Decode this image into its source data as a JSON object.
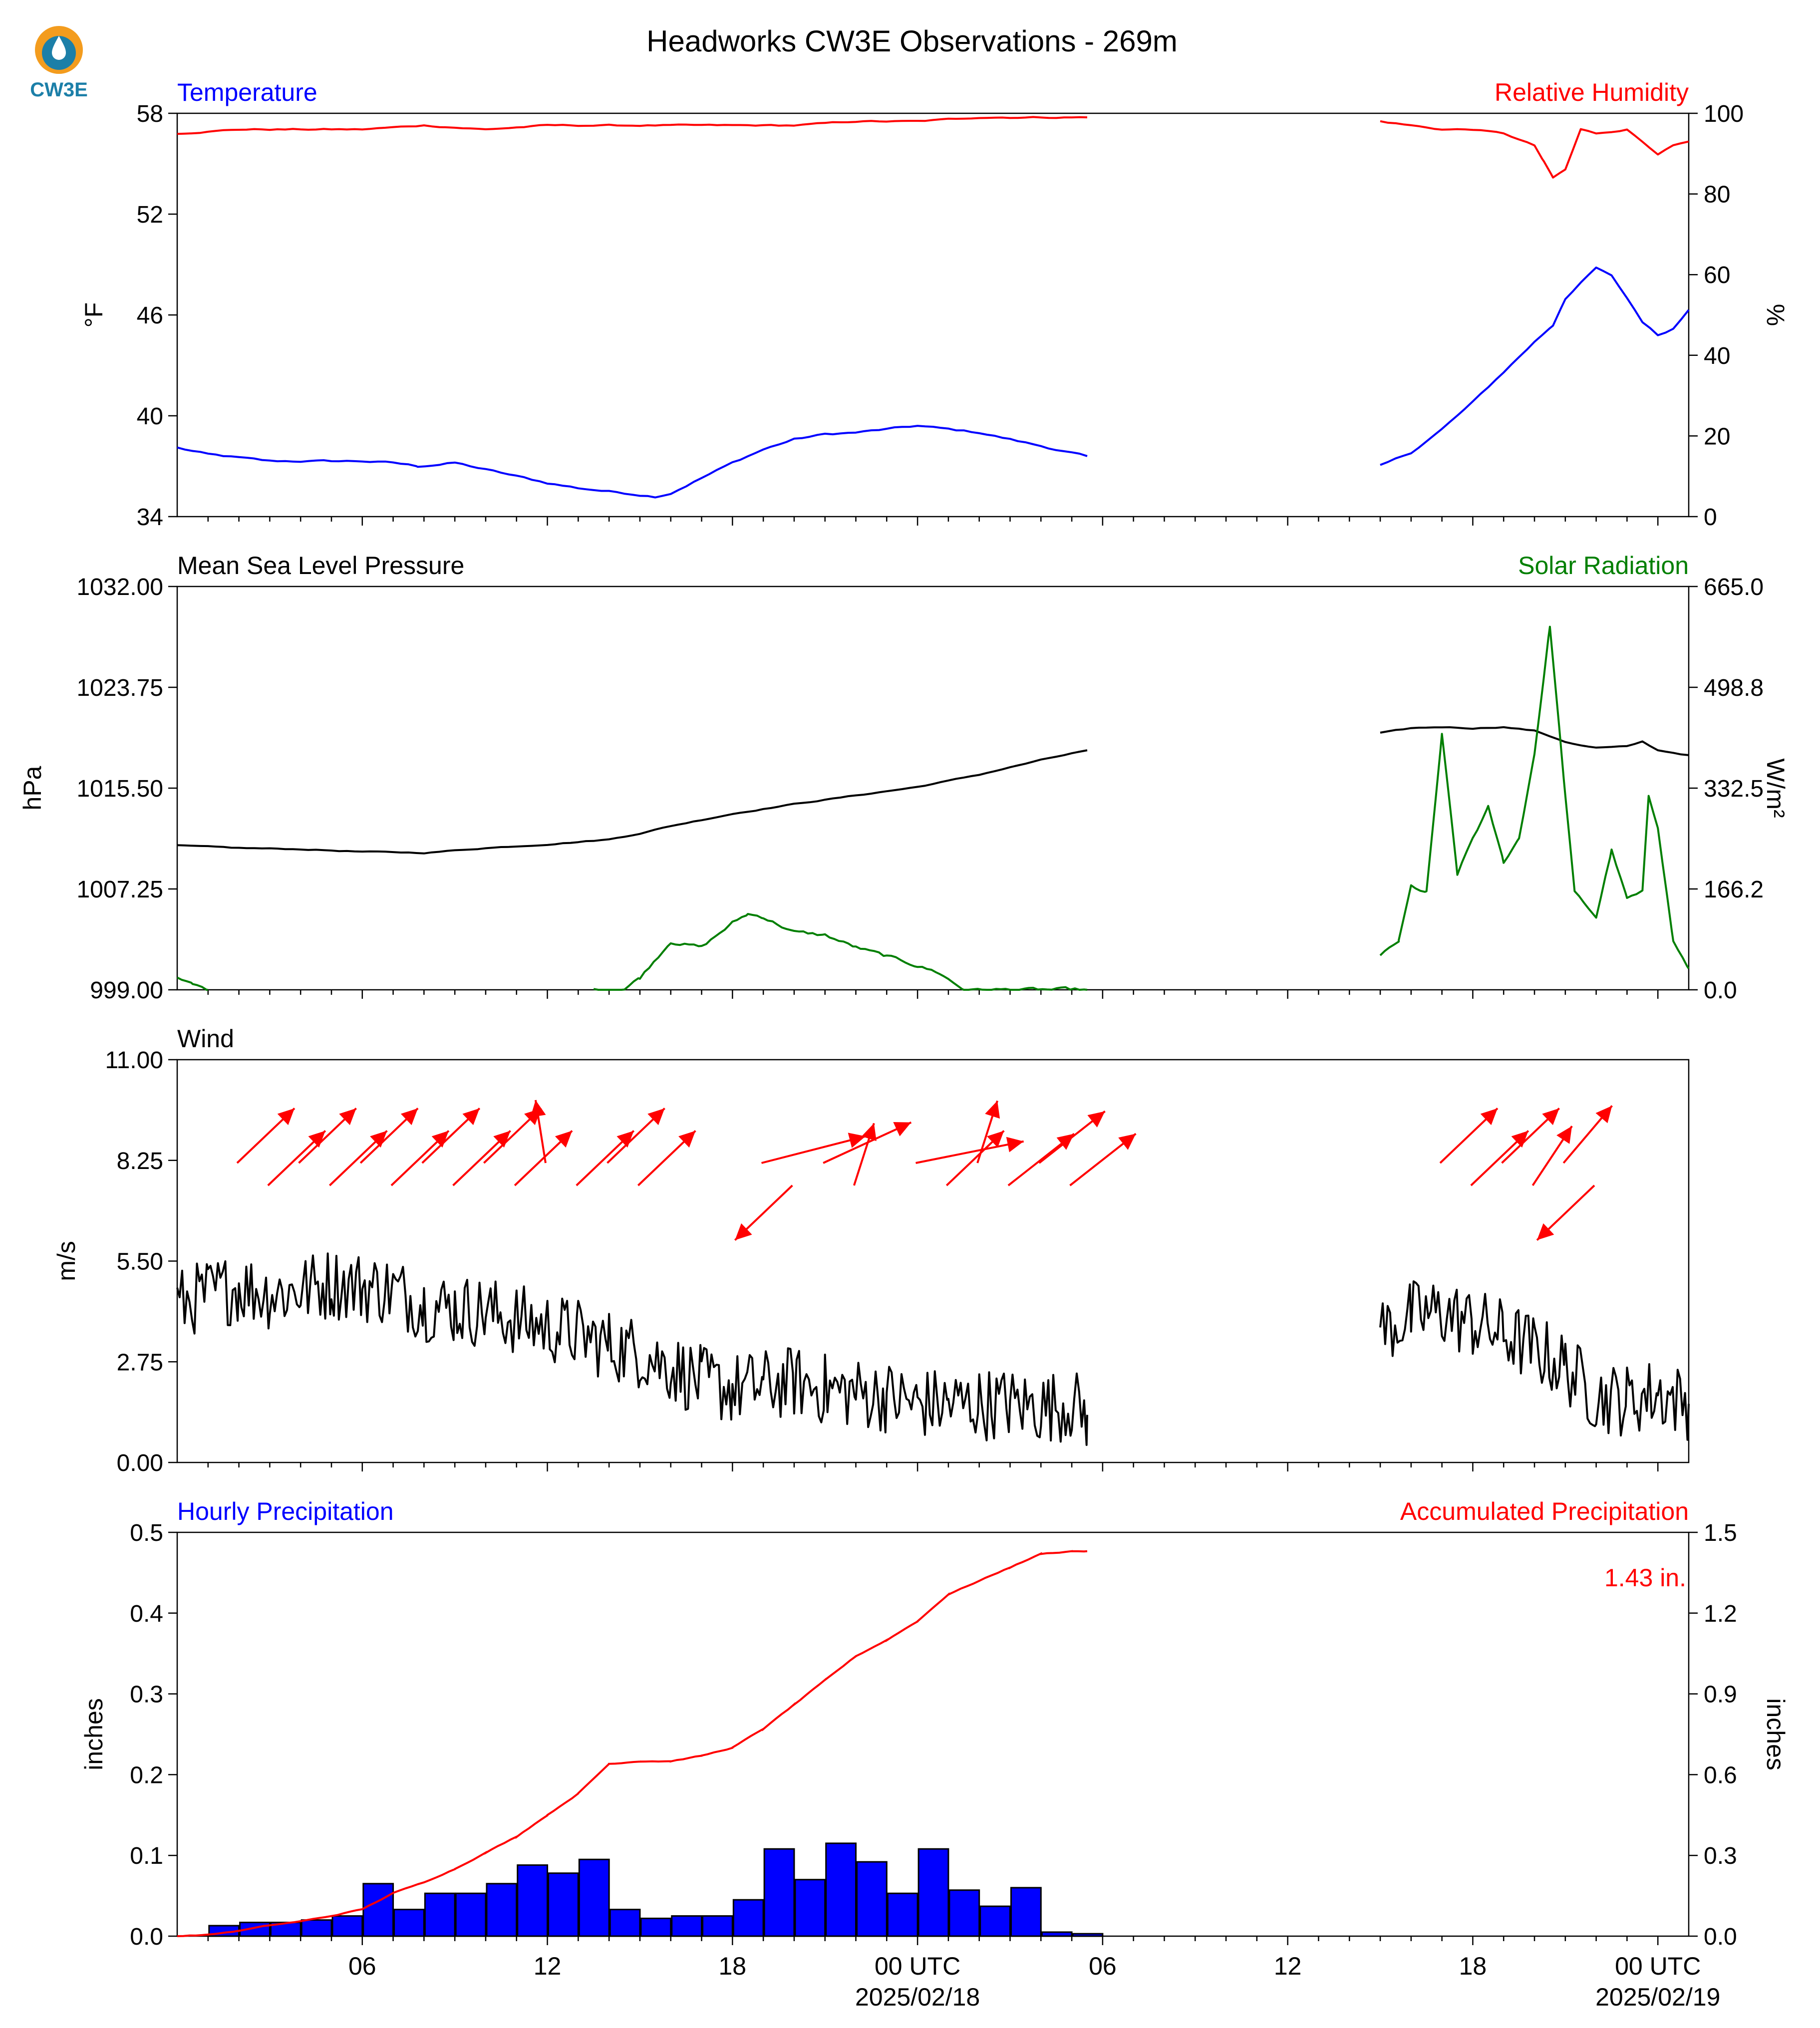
{
  "figure": {
    "title": "Headworks CW3E Observations - 269m",
    "logo_text": "CW3E"
  },
  "colors": {
    "blue": "#0000ff",
    "red": "#ff0000",
    "green": "#007f00",
    "black": "#000000",
    "logo_orange": "#f39c1e",
    "logo_teal": "#1c7fa8"
  },
  "time_axis": {
    "start": "2025-02-17 00:00 UTC",
    "end": "2025-02-19 01:00 UTC",
    "tick_labels": [
      "06",
      "12",
      "18",
      "00 UTC\n2025/02/18",
      "06",
      "12",
      "18",
      "00 UTC\n2025/02/19"
    ],
    "major_tick_hours": [
      6,
      12,
      18,
      24,
      30,
      36,
      42,
      48
    ]
  },
  "chart_data": [
    {
      "type": "line",
      "panel": "temperature_humidity",
      "title_left": "Temperature",
      "title_right": "Relative Humidity",
      "ylabel_left": "°F",
      "ylabel_right": "%",
      "ylim_left": [
        34,
        58
      ],
      "ylim_right": [
        0,
        100
      ],
      "yticks_left": [
        "58",
        "52",
        "46",
        "40",
        "34"
      ],
      "yticks_right": [
        "100",
        "80",
        "60",
        "40",
        "20",
        "0"
      ],
      "series": [
        {
          "name": "Temperature",
          "axis": "left",
          "color": "#0000ff",
          "x": [
            0,
            1,
            2,
            3,
            4,
            5,
            6,
            7,
            7.8,
            8.5,
            9,
            10,
            11,
            12,
            13,
            14,
            15,
            15.5,
            16,
            17,
            18,
            19,
            20,
            21,
            22,
            23,
            24,
            25,
            26,
            27,
            28,
            29,
            29.5,
            39,
            40,
            41,
            42,
            43,
            44,
            44.6,
            45,
            46,
            46.5,
            47,
            47.5,
            48,
            48.5,
            49
          ],
          "y": [
            38.1,
            37.7,
            37.5,
            37.3,
            37.3,
            37.3,
            37.3,
            37.2,
            37.0,
            37.1,
            37.2,
            36.8,
            36.4,
            36.0,
            35.7,
            35.5,
            35.3,
            35.2,
            35.4,
            36.3,
            37.2,
            38.0,
            38.6,
            38.9,
            39.0,
            39.2,
            39.4,
            39.2,
            39.0,
            38.6,
            38.2,
            37.8,
            37.6,
            37.0,
            37.8,
            39.2,
            40.8,
            42.6,
            44.4,
            45.4,
            47.0,
            48.8,
            48.3,
            47.0,
            45.6,
            44.8,
            45.2,
            46.3
          ]
        },
        {
          "name": "Relative Humidity",
          "axis": "right",
          "color": "#ff0000",
          "x": [
            0,
            2,
            4,
            6,
            8,
            10,
            12,
            14,
            16,
            18,
            20,
            22,
            24,
            26,
            28,
            29.5,
            39,
            40,
            41,
            42,
            43,
            44,
            44.3,
            44.6,
            45,
            45.5,
            46,
            47,
            47.5,
            48,
            48.5,
            49
          ],
          "y": [
            95,
            96,
            96,
            96,
            97,
            96,
            97,
            97,
            97,
            97,
            97,
            98,
            98,
            99,
            99,
            99,
            98,
            97,
            96,
            96,
            95,
            92,
            88,
            84,
            86,
            96,
            95,
            96,
            93,
            90,
            92,
            93
          ]
        }
      ]
    },
    {
      "type": "line",
      "panel": "pressure_solar",
      "title_left": "Mean Sea Level Pressure",
      "title_right": "Solar Radiation",
      "ylabel_left": "hPa",
      "ylabel_right": "W/m²",
      "ylim_left": [
        999.0,
        1032.0
      ],
      "ylim_right": [
        0.0,
        665.0
      ],
      "yticks_left": [
        "1032.00",
        "1023.75",
        "1015.50",
        "1007.25",
        "999.00"
      ],
      "yticks_right": [
        "665.0",
        "498.8",
        "332.5",
        "166.2",
        "0.0"
      ],
      "series": [
        {
          "name": "Mean Sea Level Pressure",
          "axis": "left",
          "color": "#000000",
          "x": [
            0,
            2,
            4,
            6,
            8,
            10,
            12,
            14,
            15,
            16,
            18,
            20,
            22,
            24,
            26,
            28,
            29.5,
            39,
            40,
            41,
            42,
            43,
            44,
            45,
            45.5,
            46,
            47,
            47.5,
            48,
            49
          ],
          "y": [
            1010.8,
            1010.6,
            1010.5,
            1010.3,
            1010.2,
            1010.6,
            1010.9,
            1011.3,
            1011.8,
            1012.4,
            1013.4,
            1014.2,
            1014.9,
            1015.6,
            1016.6,
            1017.8,
            1018.6,
            1020.0,
            1020.4,
            1020.5,
            1020.4,
            1020.5,
            1020.2,
            1019.3,
            1019.0,
            1018.8,
            1018.9,
            1019.3,
            1018.6,
            1018.2
          ]
        },
        {
          "name": "Solar Radiation",
          "axis": "right",
          "color": "#007f00",
          "x": [
            0,
            0.5,
            1,
            13.5,
            14.5,
            15,
            16,
            17,
            18,
            18.5,
            19,
            20,
            21,
            22,
            23,
            24,
            24.7,
            25.5,
            29.5,
            39,
            39.6,
            40,
            40.5,
            41,
            41.5,
            42,
            42.5,
            43,
            43.5,
            44,
            44.3,
            44.5,
            45,
            45.3,
            46,
            46.5,
            47,
            47.5,
            47.7,
            48,
            48.5,
            49
          ],
          "y": [
            18,
            8,
            0,
            0,
            2,
            20,
            80,
            70,
            110,
            125,
            120,
            95,
            90,
            70,
            55,
            40,
            28,
            0,
            0,
            55,
            80,
            170,
            160,
            420,
            190,
            250,
            300,
            210,
            250,
            390,
            515,
            600,
            320,
            160,
            120,
            230,
            150,
            160,
            320,
            270,
            80,
            35
          ]
        }
      ]
    },
    {
      "type": "line",
      "panel": "wind",
      "title_left": "Wind",
      "ylabel_left": "m/s",
      "ylim_left": [
        0.0,
        11.0
      ],
      "yticks_left": [
        "11.00",
        "8.25",
        "5.50",
        "2.75",
        "0.00"
      ],
      "series": [
        {
          "name": "Wind",
          "axis": "left",
          "color": "#000000",
          "x": [
            0,
            1,
            2,
            3,
            4,
            5,
            6,
            7,
            8,
            9,
            10,
            11,
            12,
            13,
            14,
            15,
            16,
            17,
            18,
            19,
            20,
            21,
            22,
            23,
            24,
            25,
            26,
            27,
            28,
            29,
            29.5,
            39,
            40,
            41,
            42,
            43,
            44,
            45,
            46,
            47,
            48,
            49
          ],
          "y": [
            4.3,
            4.6,
            4.8,
            4.6,
            4.7,
            4.9,
            4.8,
            4.7,
            4.3,
            4.2,
            4.1,
            3.9,
            3.7,
            3.5,
            3.2,
            3.0,
            2.6,
            2.2,
            2.0,
            2.1,
            2.2,
            2.0,
            1.9,
            1.8,
            1.6,
            1.6,
            1.6,
            1.6,
            1.5,
            1.6,
            1.3,
            3.6,
            4.0,
            4.1,
            3.8,
            3.5,
            3.1,
            2.6,
            1.8,
            1.7,
            1.9,
            1.6
          ]
        }
      ],
      "barbs": {
        "color": "#ff0000",
        "direction_deg": [
          120,
          120,
          120,
          120,
          120,
          120,
          120,
          120,
          120,
          120,
          85,
          120,
          120,
          120,
          155,
          300,
          140,
          100,
          160,
          120,
          100,
          125,
          125,
          125,
          120,
          120,
          120,
          110,
          115,
          300
        ],
        "hours": [
          0,
          1,
          2,
          3,
          4,
          5,
          6,
          7,
          8,
          9,
          10,
          11,
          12,
          13,
          17,
          18,
          19,
          20,
          22,
          23,
          24,
          25,
          26,
          27,
          39,
          40,
          41,
          42,
          43,
          44
        ]
      }
    },
    {
      "type": "bar",
      "panel": "precipitation",
      "title_left": "Hourly Precipitation",
      "title_right": "Accumulated Precipitation",
      "ylabel_left": "inches",
      "ylabel_right": "inches",
      "ylim_left": [
        0.0,
        0.5
      ],
      "ylim_right": [
        0.0,
        1.5
      ],
      "yticks_left": [
        "0.5",
        "0.4",
        "0.3",
        "0.2",
        "0.1",
        "0.0"
      ],
      "yticks_right": [
        "1.5",
        "1.2",
        "0.9",
        "0.6",
        "0.3",
        "0.0"
      ],
      "annotation": "1.43 in.",
      "hourly_hours": [
        1,
        2,
        3,
        4,
        5,
        6,
        7,
        8,
        9,
        10,
        11,
        12,
        13,
        14,
        15,
        16,
        17,
        18,
        19,
        20,
        21,
        22,
        23,
        24,
        25,
        26,
        27,
        28,
        29,
        30
      ],
      "hourly_values": [
        0.013,
        0.017,
        0.017,
        0.02,
        0.025,
        0.065,
        0.033,
        0.053,
        0.053,
        0.065,
        0.088,
        0.078,
        0.095,
        0.033,
        0.022,
        0.025,
        0.025,
        0.045,
        0.108,
        0.07,
        0.115,
        0.092,
        0.053,
        0.108,
        0.057,
        0.037,
        0.06,
        0.005,
        0.003,
        0.0
      ],
      "accumulated": {
        "name": "Accumulated Precipitation",
        "x": [
          0,
          1,
          2,
          3,
          4,
          5,
          6,
          7,
          8,
          9,
          10,
          11,
          12,
          13,
          14,
          15,
          16,
          17,
          18,
          19,
          20,
          21,
          22,
          23,
          24,
          25,
          26,
          27,
          28,
          29,
          29.5,
          39,
          49
        ],
        "y": [
          0.0,
          0.005,
          0.02,
          0.04,
          0.055,
          0.075,
          0.1,
          0.16,
          0.2,
          0.25,
          0.31,
          0.37,
          0.45,
          0.53,
          0.64,
          0.65,
          0.65,
          0.67,
          0.7,
          0.77,
          0.86,
          0.95,
          1.04,
          1.1,
          1.17,
          1.27,
          1.32,
          1.37,
          1.42,
          1.43,
          1.43,
          1.43,
          1.43
        ]
      }
    }
  ]
}
